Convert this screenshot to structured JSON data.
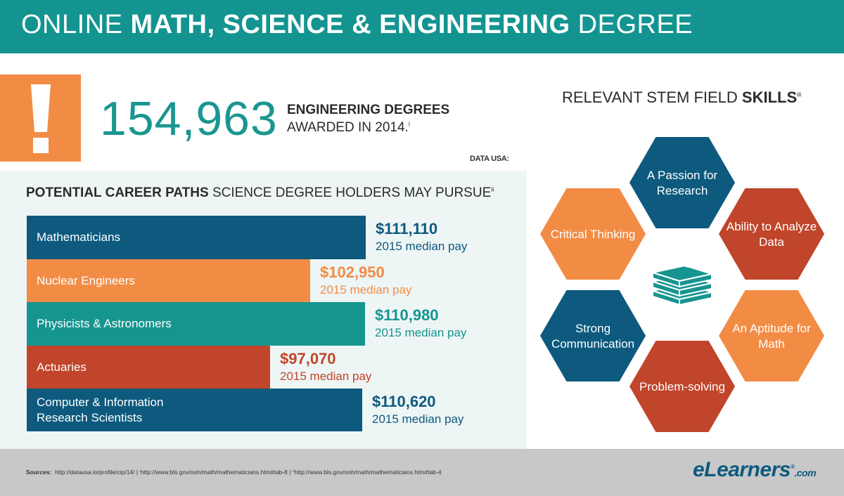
{
  "header": {
    "title_pre": "ONLINE ",
    "title_bold": "MATH, SCIENCE & ENGINEERING",
    "title_post": " DEGREE"
  },
  "stat": {
    "number": "154,963",
    "line1": "ENGINEERING DEGREES",
    "line2": "AWARDED IN 2014.",
    "line2_sup": "i",
    "source": "DATA USA:"
  },
  "alert_icon": "exclamation-icon",
  "career": {
    "title_bold": "POTENTIAL CAREER PATHS",
    "title_rest": " SCIENCE DEGREE HOLDERS MAY PURSUE",
    "title_sup": "ii"
  },
  "chart_data": {
    "type": "bar",
    "orientation": "horizontal",
    "title": "POTENTIAL CAREER PATHS SCIENCE DEGREE HOLDERS MAY PURSUE",
    "categories": [
      "Mathematicians",
      "Nuclear Engineers",
      "Physicists & Astronomers",
      "Actuaries",
      "Computer & Information Research Scientists"
    ],
    "values": [
      111110,
      102950,
      110980,
      97070,
      110620
    ],
    "value_labels": [
      "$111,110",
      "$102,950",
      "$110,980",
      "$97,070",
      "$110,620"
    ],
    "sub_label": "2015 median pay",
    "colors": [
      "#0d5a7e",
      "#f28c45",
      "#169590",
      "#c0452a",
      "#0d5a7e"
    ]
  },
  "skills": {
    "title_pre": "RELEVANT STEM FIELD ",
    "title_bold": "SKILLS",
    "title_sup": "iii",
    "center_icon": "book-stack-icon",
    "items": [
      {
        "lines": [
          "A Passion for",
          "Research"
        ],
        "color": "#0d5a7e"
      },
      {
        "lines": [
          "Critical Thinking"
        ],
        "color": "#f28c45"
      },
      {
        "lines": [
          "Ability to Analyze",
          "Data"
        ],
        "color": "#c0452a"
      },
      {
        "lines": [
          "Strong",
          "Communication"
        ],
        "color": "#0d5a7e"
      },
      {
        "lines": [
          "An Aptitude for",
          "Math"
        ],
        "color": "#f28c45"
      },
      {
        "lines": [
          "Problem-solving"
        ],
        "color": "#c0452a"
      }
    ],
    "icon_color": "#169590"
  },
  "footer": {
    "sources_label": "Sources:",
    "sources_text": "http://datausa.io/profile/cip/14/   |   ⁱhttp://www.bls.gov/ooh/math/mathematicians.htm#tab-8   |   ⁱⁱhttp://www.bls.gov/ooh/math/mathematicians.htm#tab-4",
    "brand_main": "eLearners",
    "brand_reg": "®",
    "brand_sub": ".com"
  }
}
